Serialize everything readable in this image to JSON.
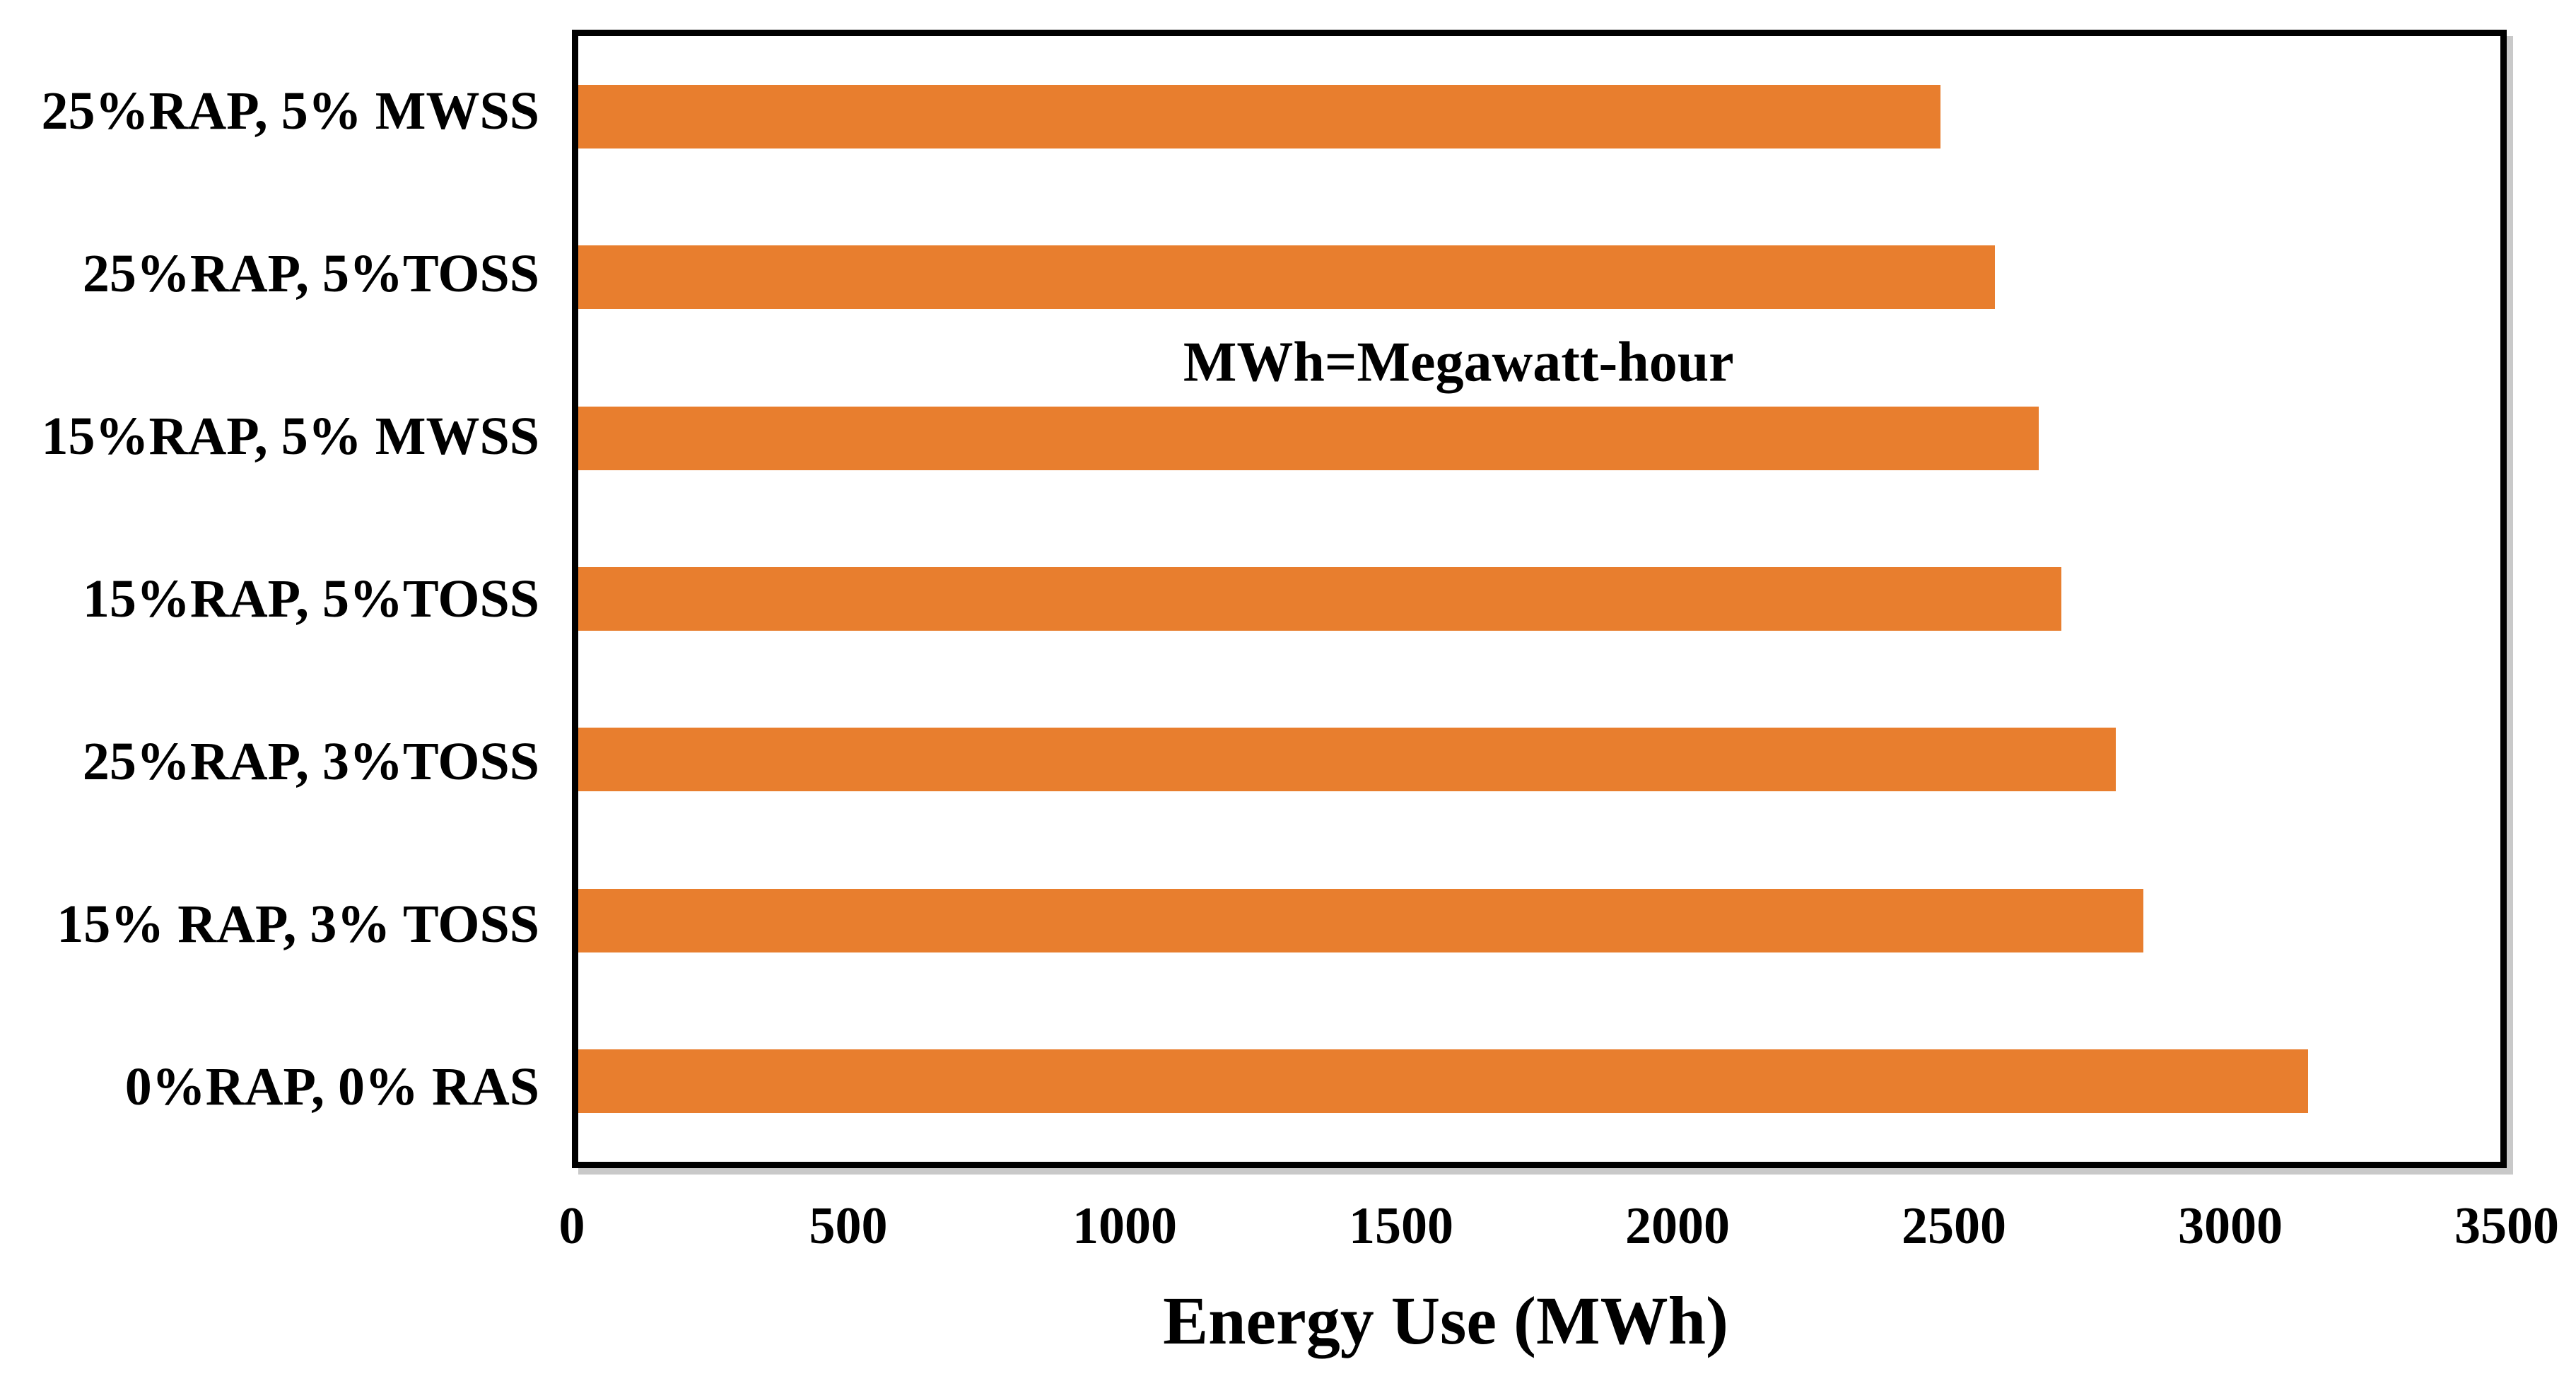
{
  "chart_data": {
    "type": "bar",
    "orientation": "horizontal",
    "title": "",
    "xlabel": "Energy Use (MWh)",
    "ylabel": "",
    "annotation": "MWh=Megawatt-hour",
    "categories": [
      "25%RAP, 5% MWSS",
      "25%RAP, 5%TOSS",
      "15%RAP, 5% MWSS",
      "15%RAP, 5%TOSS",
      "25%RAP, 3%TOSS",
      "15% RAP, 3% TOSS",
      "0%RAP, 0% RAS"
    ],
    "values": [
      2480,
      2580,
      2660,
      2700,
      2800,
      2850,
      3150
    ],
    "xlim": [
      0,
      3500
    ],
    "xticks": [
      0,
      500,
      1000,
      1500,
      2000,
      2500,
      3000,
      3500
    ],
    "grid": false,
    "legend": null,
    "bar_color": "#E87E2E",
    "frame_color": "#000000",
    "frame_shadow_color": "#c9c9c9"
  }
}
